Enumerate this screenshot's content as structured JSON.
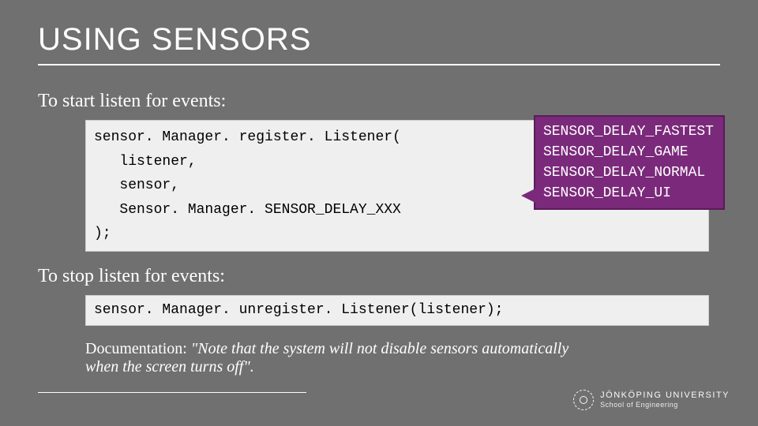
{
  "slide": {
    "title": "USING SENSORS",
    "intro1": "To start listen for events:",
    "code1": "sensor. Manager. register. Listener(\n   listener,\n   sensor,\n   Sensor. Manager. SENSOR_DELAY_XXX\n);",
    "intro2": "To stop listen for events:",
    "code2": "sensor. Manager. unregister. Listener(listener);",
    "doc_label": "Documentation: ",
    "doc_quote": "\"Note that the system will not disable sensors automatically when the screen turns off\".",
    "callout_lines": [
      "SENSOR_DELAY_FASTEST",
      "SENSOR_DELAY_GAME",
      "SENSOR_DELAY_NORMAL",
      "SENSOR_DELAY_UI"
    ]
  },
  "footer": {
    "university": "JÖNKÖPING UNIVERSITY",
    "school": "School of Engineering"
  },
  "colors": {
    "background": "#707070",
    "code_bg": "#efefef",
    "callout_bg": "#7b2a7b",
    "callout_border": "#5a1c5a",
    "text": "#ffffff"
  }
}
